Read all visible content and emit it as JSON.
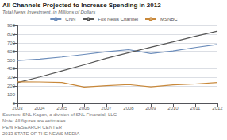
{
  "chart_data": {
    "type": "line",
    "title": "All Channels Projected to Increase Spending in 2012",
    "subtitle": "Total News Investment, in Millions of Dollars",
    "x": [
      2003,
      2004,
      2005,
      2006,
      2007,
      2008,
      2009,
      2010,
      2011,
      2012
    ],
    "series": [
      {
        "name": "CNN",
        "color": "#6b8cba",
        "values": [
          495,
          510,
          535,
          565,
          595,
          620,
          575,
          605,
          645,
          680
        ]
      },
      {
        "name": "Fox News Channel",
        "color": "#555555",
        "values": [
          240,
          305,
          375,
          445,
          520,
          585,
          648,
          710,
          775,
          835
        ]
      },
      {
        "name": "MSNBC",
        "color": "#c8883a",
        "values": [
          250,
          248,
          242,
          190,
          205,
          218,
          192,
          215,
          225,
          242
        ]
      }
    ],
    "xlim": [
      2003,
      2012
    ],
    "xticks": [
      2003,
      2004,
      2005,
      2006,
      2007,
      2008,
      2009,
      2010,
      2011,
      2012
    ],
    "ylim": [
      0,
      900
    ],
    "yticks": [
      0,
      100,
      200,
      300,
      400,
      500,
      600,
      700,
      800,
      900
    ],
    "grid": true,
    "legend": "top",
    "annotations": [
      "Sources: SNL Kagan, a division of SNL Financial, LLC",
      "Note: All figures are estimates.",
      "PEW RESEARCH CENTER",
      "2013 STATE OF THE NEWS MEDIA"
    ]
  }
}
